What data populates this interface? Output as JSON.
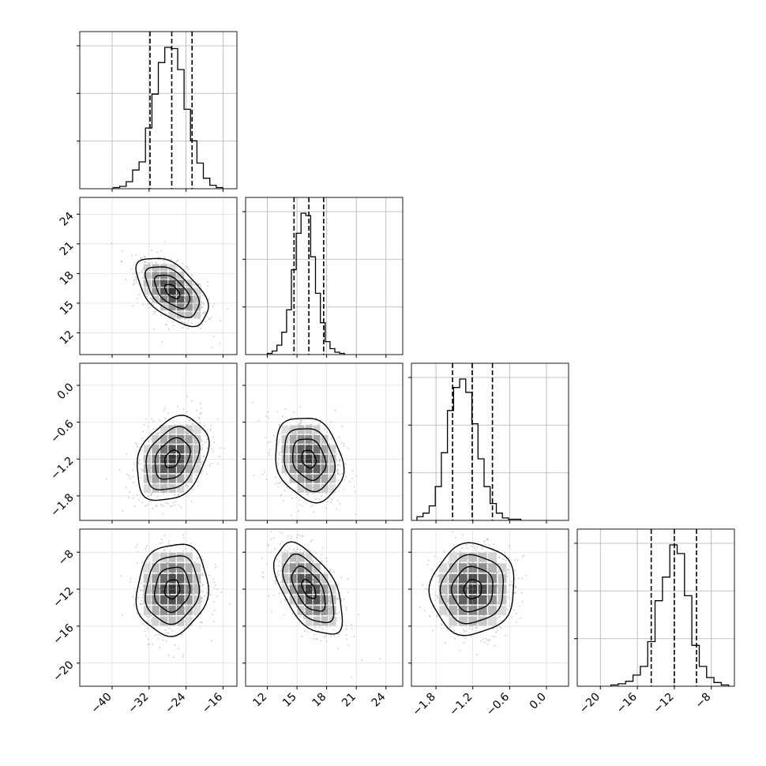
{
  "chart_data": {
    "type": "corner",
    "grid": true,
    "colors": {
      "hist": "#000000",
      "contour": "#000000",
      "grid": "#b0b0b0",
      "points": "#9a9a9a"
    },
    "parameters": [
      {
        "range": [
          -47,
          -13
        ],
        "ticks": [
          "−40",
          "−32",
          "−24",
          "−16"
        ],
        "tick_values": [
          -40,
          -32,
          -24,
          -16
        ],
        "mean": -27,
        "quantiles": [
          -31.8,
          -27.1,
          -22.7
        ]
      },
      {
        "range": [
          9.8,
          25.7
        ],
        "ticks": [
          "12",
          "15",
          "18",
          "21",
          "24"
        ],
        "tick_values": [
          12,
          15,
          18,
          21,
          24
        ],
        "mean": 16.2,
        "quantiles": [
          14.7,
          16.2,
          17.7
        ]
      },
      {
        "range": [
          -2.2,
          0.36
        ],
        "ticks": [
          "−1.8",
          "−1.2",
          "−0.6",
          "0.0"
        ],
        "tick_values": [
          -1.8,
          -1.2,
          -0.6,
          0.0
        ],
        "mean": -1.2,
        "quantiles": [
          -1.53,
          -1.21,
          -0.88
        ]
      },
      {
        "range": [
          -22.5,
          -5.5
        ],
        "ticks": [
          "−20",
          "−16",
          "−12",
          "−8"
        ],
        "tick_values": [
          -20,
          -16,
          -12,
          -8
        ],
        "mean": -12,
        "quantiles": [
          -14.5,
          -12.0,
          -9.6
        ]
      }
    ],
    "histograms": [
      {
        "param": 0,
        "counts": [
          1,
          2,
          6,
          16,
          23,
          52,
          81,
          108,
          121,
          120,
          102,
          68,
          41,
          22,
          9,
          3,
          1
        ]
      },
      {
        "param": 1,
        "counts": [
          1,
          3,
          8,
          19,
          38,
          72,
          103,
          120,
          118,
          83,
          52,
          27,
          11,
          5,
          2,
          1
        ]
      },
      {
        "param": 2,
        "counts": [
          3,
          6,
          12,
          28,
          56,
          91,
          110,
          117,
          106,
          80,
          51,
          28,
          14,
          6,
          2,
          1,
          1
        ]
      },
      {
        "param": 3,
        "counts": [
          1,
          2,
          4,
          9,
          16,
          36,
          69,
          88,
          114,
          107,
          73,
          33,
          16,
          7,
          3,
          1
        ]
      }
    ],
    "pairs": [
      {
        "x": 0,
        "y": 1,
        "rho": -0.55
      },
      {
        "x": 0,
        "y": 2,
        "rho": 0.3
      },
      {
        "x": 1,
        "y": 2,
        "rho": -0.2
      },
      {
        "x": 0,
        "y": 3,
        "rho": 0.1
      },
      {
        "x": 1,
        "y": 3,
        "rho": -0.55
      },
      {
        "x": 2,
        "y": 3,
        "rho": 0.05
      }
    ]
  }
}
